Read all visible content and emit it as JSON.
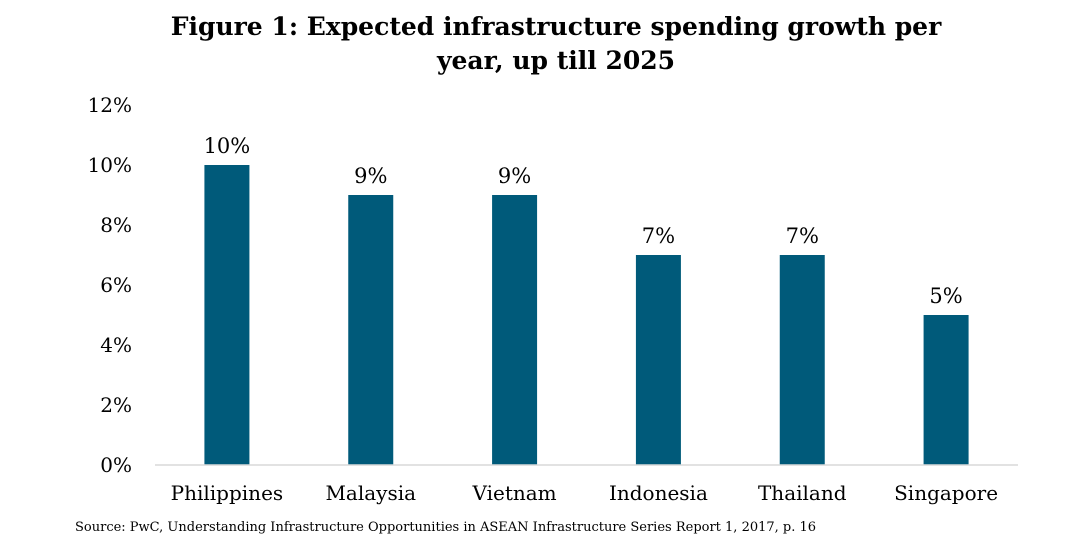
{
  "chart_data": {
    "type": "bar",
    "title_lines": [
      "Figure 1: Expected infrastructure spending growth per",
      "year, up till 2025"
    ],
    "categories": [
      "Philippines",
      "Malaysia",
      "Vietnam",
      "Indonesia",
      "Thailand",
      "Singapore"
    ],
    "values": [
      10,
      9,
      9,
      7,
      7,
      5
    ],
    "data_labels": [
      "10%",
      "9%",
      "9%",
      "7%",
      "7%",
      "5%"
    ],
    "ylim": [
      0,
      12
    ],
    "yticks": [
      0,
      2,
      4,
      6,
      8,
      10,
      12
    ],
    "ytick_labels": [
      "0%",
      "2%",
      "4%",
      "6%",
      "8%",
      "10%",
      "12%"
    ],
    "bar_color": "#005a7a",
    "grid": false,
    "legend": "none"
  },
  "source_note": "Source: PwC, Understanding Infrastructure Opportunities in ASEAN Infrastructure Series Report 1, 2017, p. 16"
}
